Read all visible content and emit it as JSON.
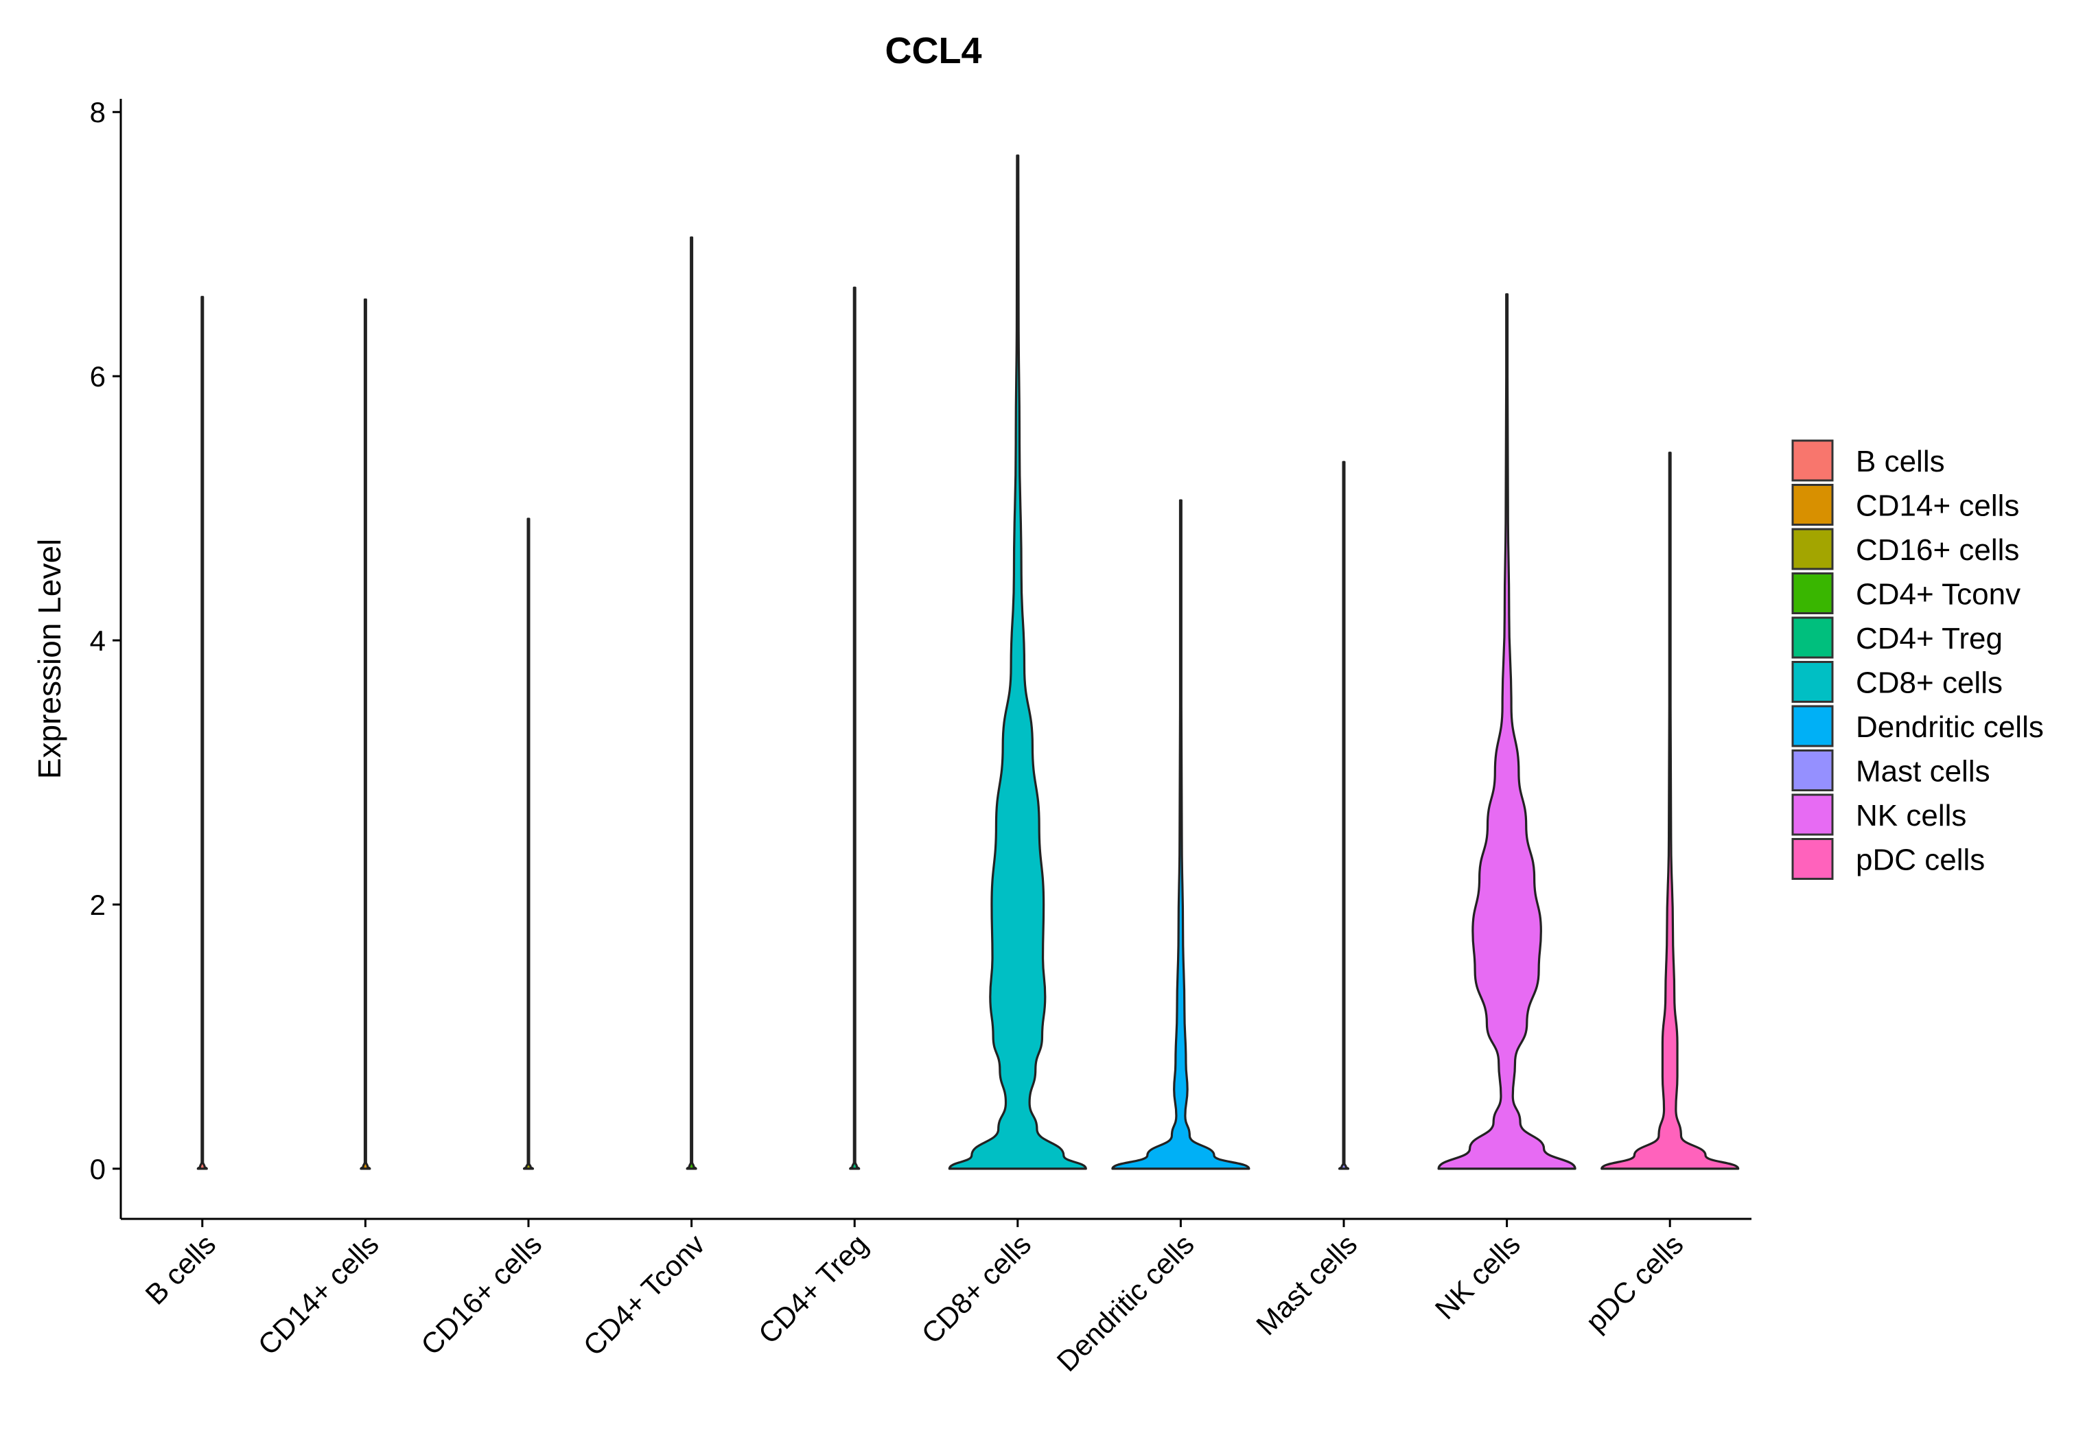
{
  "chart_data": {
    "type": "violin",
    "title": "CCL4",
    "ylabel": "Expression Level",
    "xlabel": "",
    "ylim": [
      -0.38,
      8.1
    ],
    "yticks": [
      0,
      2,
      4,
      6,
      8
    ],
    "categories": [
      "B cells",
      "CD14+ cells",
      "CD16+ cells",
      "CD4+ Tconv",
      "CD4+ Treg",
      "CD8+ cells",
      "Dendritic cells",
      "Mast cells",
      "NK cells",
      "pDC cells"
    ],
    "colors": [
      "#F8766D",
      "#D89000",
      "#A3A500",
      "#39B600",
      "#00BF7D",
      "#00BFC4",
      "#00B0F6",
      "#9590FF",
      "#E76BF3",
      "#FF62BC"
    ],
    "legend_position": "right",
    "series": [
      {
        "name": "B cells",
        "max": 6.6,
        "profile": [
          [
            0,
            0.06
          ],
          [
            0.015,
            0.03
          ],
          [
            0.05,
            0.006
          ],
          [
            6.6,
            0.006
          ]
        ]
      },
      {
        "name": "CD14+ cells",
        "max": 6.58,
        "profile": [
          [
            0,
            0.06
          ],
          [
            0.015,
            0.03
          ],
          [
            0.05,
            0.006
          ],
          [
            6.58,
            0.006
          ]
        ]
      },
      {
        "name": "CD16+ cells",
        "max": 4.92,
        "profile": [
          [
            0,
            0.06
          ],
          [
            0.012,
            0.03
          ],
          [
            0.04,
            0.006
          ],
          [
            4.92,
            0.006
          ]
        ]
      },
      {
        "name": "CD4+ Tconv",
        "max": 7.05,
        "profile": [
          [
            0,
            0.06
          ],
          [
            0.015,
            0.03
          ],
          [
            0.05,
            0.006
          ],
          [
            7.05,
            0.006
          ]
        ]
      },
      {
        "name": "CD4+ Treg",
        "max": 6.67,
        "profile": [
          [
            0,
            0.06
          ],
          [
            0.015,
            0.03
          ],
          [
            0.05,
            0.006
          ],
          [
            6.67,
            0.006
          ]
        ]
      },
      {
        "name": "CD8+ cells",
        "max": 7.67,
        "profile": [
          [
            0,
            0.92
          ],
          [
            0.1,
            0.62
          ],
          [
            0.3,
            0.26
          ],
          [
            0.5,
            0.16
          ],
          [
            0.75,
            0.24
          ],
          [
            1.0,
            0.33
          ],
          [
            1.3,
            0.37
          ],
          [
            1.6,
            0.34
          ],
          [
            2.0,
            0.35
          ],
          [
            2.6,
            0.29
          ],
          [
            3.2,
            0.2
          ],
          [
            3.8,
            0.09
          ],
          [
            4.5,
            0.05
          ],
          [
            5.5,
            0.025
          ],
          [
            6.5,
            0.012
          ],
          [
            7.67,
            0.004
          ]
        ]
      },
      {
        "name": "Dendritic cells",
        "max": 5.06,
        "profile": [
          [
            0,
            0.92
          ],
          [
            0.1,
            0.45
          ],
          [
            0.25,
            0.12
          ],
          [
            0.4,
            0.06
          ],
          [
            0.6,
            0.09
          ],
          [
            0.8,
            0.07
          ],
          [
            1.2,
            0.05
          ],
          [
            1.8,
            0.03
          ],
          [
            2.5,
            0.015
          ],
          [
            3.5,
            0.008
          ],
          [
            5.06,
            0.004
          ]
        ]
      },
      {
        "name": "Mast cells",
        "max": 5.35,
        "profile": [
          [
            0,
            0.06
          ],
          [
            0.012,
            0.03
          ],
          [
            0.04,
            0.006
          ],
          [
            5.35,
            0.006
          ]
        ]
      },
      {
        "name": "NK cells",
        "max": 6.62,
        "profile": [
          [
            0,
            0.92
          ],
          [
            0.15,
            0.5
          ],
          [
            0.35,
            0.18
          ],
          [
            0.55,
            0.08
          ],
          [
            0.8,
            0.11
          ],
          [
            1.1,
            0.27
          ],
          [
            1.5,
            0.43
          ],
          [
            1.8,
            0.46
          ],
          [
            2.2,
            0.37
          ],
          [
            2.6,
            0.26
          ],
          [
            3.0,
            0.16
          ],
          [
            3.5,
            0.06
          ],
          [
            4.2,
            0.03
          ],
          [
            5.0,
            0.015
          ],
          [
            6.0,
            0.008
          ],
          [
            6.62,
            0.004
          ]
        ]
      },
      {
        "name": "pDC cells",
        "max": 5.42,
        "profile": [
          [
            0,
            0.92
          ],
          [
            0.1,
            0.48
          ],
          [
            0.25,
            0.15
          ],
          [
            0.45,
            0.08
          ],
          [
            0.7,
            0.1
          ],
          [
            0.95,
            0.1
          ],
          [
            1.3,
            0.06
          ],
          [
            1.8,
            0.04
          ],
          [
            2.5,
            0.015
          ],
          [
            3.5,
            0.008
          ],
          [
            5.42,
            0.004
          ]
        ]
      }
    ]
  }
}
